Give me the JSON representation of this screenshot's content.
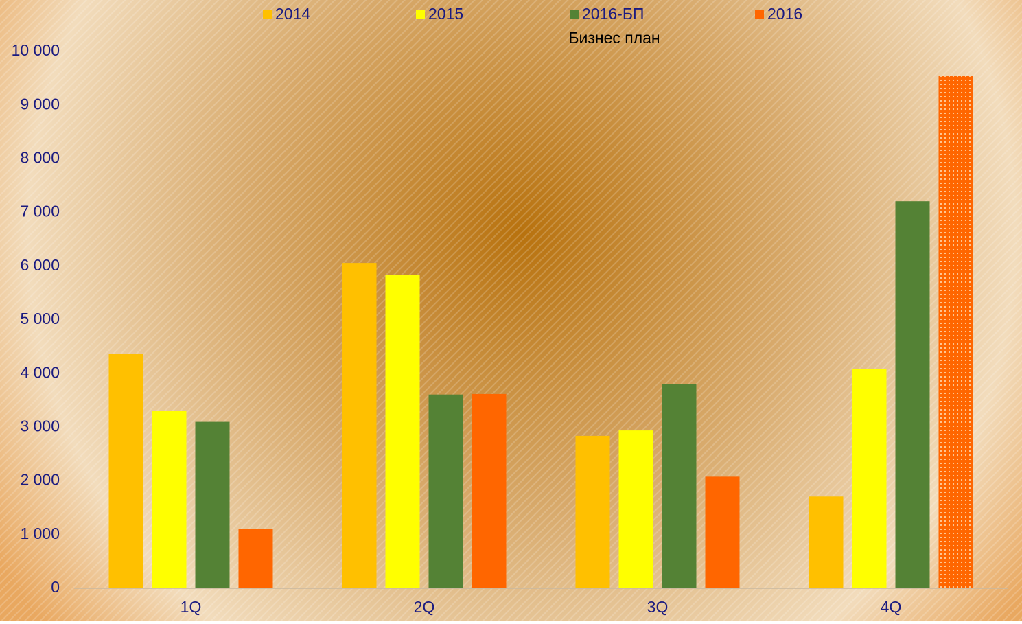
{
  "chart_data": {
    "type": "bar",
    "annotations": [
      "Бизнес план"
    ],
    "categories": [
      "1Q",
      "2Q",
      "3Q",
      "4Q"
    ],
    "series": [
      {
        "name": "2014",
        "color": "#ffc000",
        "values": [
          4370,
          6060,
          2840,
          1710
        ]
      },
      {
        "name": "2015",
        "color": "#ffff00",
        "values": [
          3310,
          5840,
          2940,
          4080
        ]
      },
      {
        "name": "2016-БП",
        "color": "#548235",
        "values": [
          3100,
          3610,
          3810,
          7210
        ]
      },
      {
        "name": "2016",
        "color": "#ff6600",
        "values": [
          1110,
          3620,
          2080,
          9550
        ],
        "patterned": [
          3
        ]
      }
    ],
    "ylim": [
      0,
      10000
    ],
    "yticks": [
      0,
      {
        "value": 1000,
        "label": "1 000"
      },
      {
        "value": 2000,
        "label": "2 000"
      },
      {
        "value": 3000,
        "label": "3 000"
      },
      {
        "value": 4000,
        "label": "4 000"
      },
      {
        "value": 5000,
        "label": "5 000"
      },
      {
        "value": 6000,
        "label": "6 000"
      },
      {
        "value": 7000,
        "label": "7 000"
      },
      {
        "value": 8000,
        "label": "8 000"
      },
      {
        "value": 9000,
        "label": "9 000"
      },
      {
        "value": 10000,
        "label": "10 000"
      }
    ],
    "legend": "top"
  }
}
